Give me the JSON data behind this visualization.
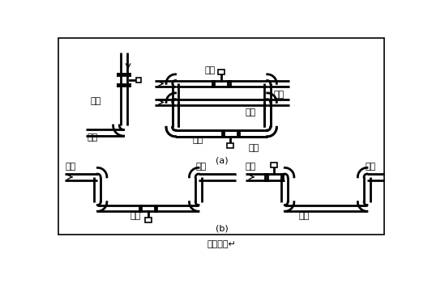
{
  "bg_color": "#ffffff",
  "pipe_lw": 2.0,
  "title": "图（四）↵",
  "label_a": "(a)",
  "label_b": "(b)",
  "font_size": 8,
  "title_font_size": 8
}
